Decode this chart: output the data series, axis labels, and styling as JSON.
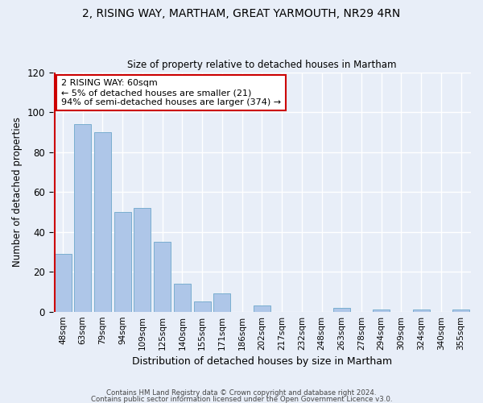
{
  "title_line1": "2, RISING WAY, MARTHAM, GREAT YARMOUTH, NR29 4RN",
  "title_line2": "Size of property relative to detached houses in Martham",
  "xlabel": "Distribution of detached houses by size in Martham",
  "ylabel": "Number of detached properties",
  "bar_labels": [
    "48sqm",
    "63sqm",
    "79sqm",
    "94sqm",
    "109sqm",
    "125sqm",
    "140sqm",
    "155sqm",
    "171sqm",
    "186sqm",
    "202sqm",
    "217sqm",
    "232sqm",
    "248sqm",
    "263sqm",
    "278sqm",
    "294sqm",
    "309sqm",
    "324sqm",
    "340sqm",
    "355sqm"
  ],
  "bar_values": [
    29,
    94,
    90,
    50,
    52,
    35,
    14,
    5,
    9,
    0,
    3,
    0,
    0,
    0,
    2,
    0,
    1,
    0,
    1,
    0,
    1
  ],
  "bar_color": "#aec6e8",
  "bar_edge_color": "#7aaed0",
  "vline_color": "#cc0000",
  "ylim": [
    0,
    120
  ],
  "yticks": [
    0,
    20,
    40,
    60,
    80,
    100,
    120
  ],
  "annotation_title": "2 RISING WAY: 60sqm",
  "annotation_line1": "← 5% of detached houses are smaller (21)",
  "annotation_line2": "94% of semi-detached houses are larger (374) →",
  "annotation_box_color": "#ffffff",
  "annotation_box_edge_color": "#cc0000",
  "footer_line1": "Contains HM Land Registry data © Crown copyright and database right 2024.",
  "footer_line2": "Contains public sector information licensed under the Open Government Licence v3.0.",
  "background_color": "#e8eef8",
  "plot_bg_color": "#e8eef8",
  "grid_color": "#ffffff"
}
